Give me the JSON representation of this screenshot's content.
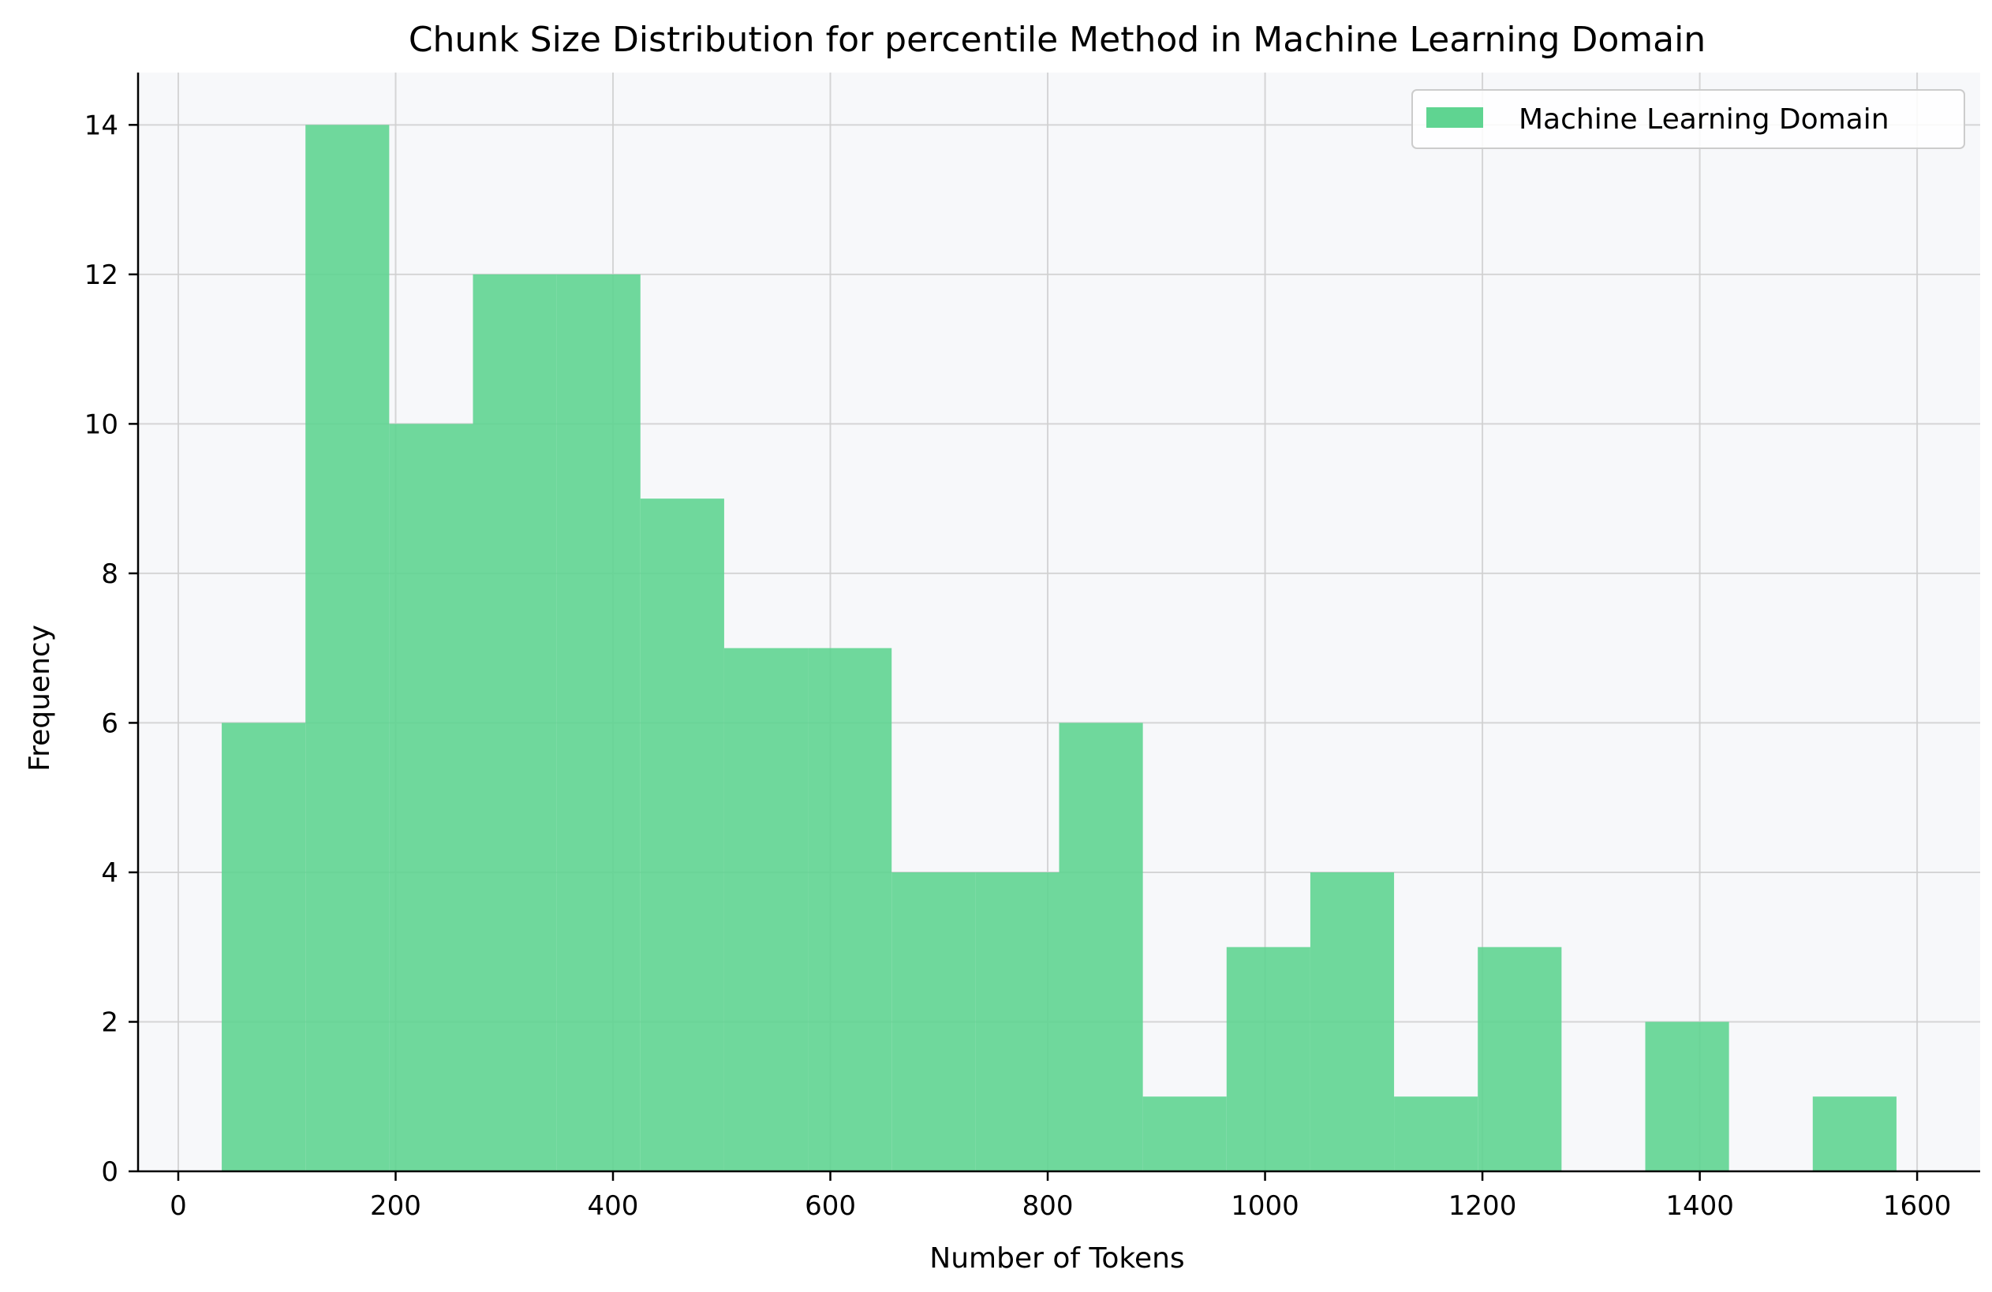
{
  "chart_data": {
    "type": "bar",
    "subtype": "histogram",
    "title": "Chunk Size Distribution for percentile Method in Machine Learning Domain",
    "xlabel": "Number of Tokens",
    "ylabel": "Frequency",
    "xlim": [
      -37,
      1658
    ],
    "ylim": [
      0,
      14.7
    ],
    "xticks": [
      0,
      200,
      400,
      600,
      800,
      1000,
      1200,
      1400,
      1600
    ],
    "yticks": [
      0,
      2,
      4,
      6,
      8,
      10,
      12,
      14
    ],
    "grid": true,
    "legend": {
      "position": "upper-right",
      "entries": [
        "Machine Learning Domain"
      ]
    },
    "colors": {
      "bar": "#5fd491",
      "plot_background": "#f7f8fa",
      "legend_background": "#ffffff"
    },
    "bin_width": 77.05,
    "series": [
      {
        "name": "Machine Learning Domain",
        "bins": [
          {
            "start": 40.0,
            "end": 117.05,
            "count": 6
          },
          {
            "start": 117.05,
            "end": 194.1,
            "count": 14
          },
          {
            "start": 194.1,
            "end": 271.15,
            "count": 10
          },
          {
            "start": 271.15,
            "end": 348.2,
            "count": 12
          },
          {
            "start": 348.2,
            "end": 425.25,
            "count": 12
          },
          {
            "start": 425.25,
            "end": 502.3,
            "count": 9
          },
          {
            "start": 502.3,
            "end": 579.35,
            "count": 7
          },
          {
            "start": 579.35,
            "end": 656.4,
            "count": 7
          },
          {
            "start": 656.4,
            "end": 733.45,
            "count": 4
          },
          {
            "start": 733.45,
            "end": 810.5,
            "count": 4
          },
          {
            "start": 810.5,
            "end": 887.55,
            "count": 6
          },
          {
            "start": 887.55,
            "end": 964.6,
            "count": 1
          },
          {
            "start": 964.6,
            "end": 1041.65,
            "count": 3
          },
          {
            "start": 1041.65,
            "end": 1118.7,
            "count": 4
          },
          {
            "start": 1118.7,
            "end": 1195.75,
            "count": 1
          },
          {
            "start": 1195.75,
            "end": 1272.8,
            "count": 3
          },
          {
            "start": 1272.8,
            "end": 1349.85,
            "count": 0
          },
          {
            "start": 1349.85,
            "end": 1426.9,
            "count": 2
          },
          {
            "start": 1426.9,
            "end": 1503.95,
            "count": 0
          },
          {
            "start": 1503.95,
            "end": 1581.0,
            "count": 1
          }
        ]
      }
    ]
  }
}
